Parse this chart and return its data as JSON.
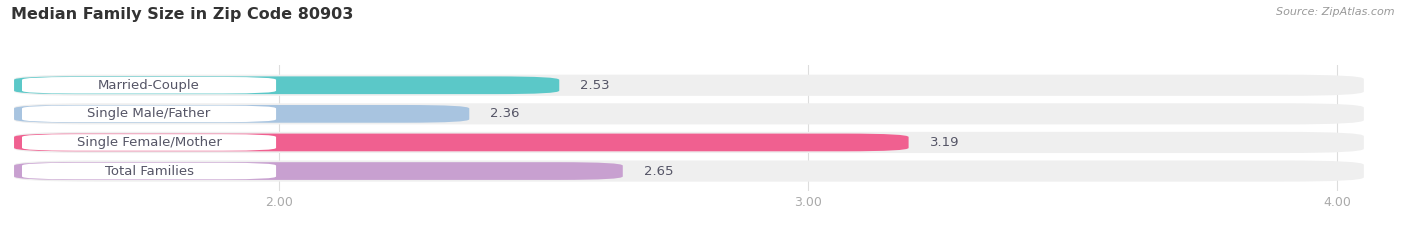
{
  "title": "Median Family Size in Zip Code 80903",
  "source": "Source: ZipAtlas.com",
  "categories": [
    "Married-Couple",
    "Single Male/Father",
    "Single Female/Mother",
    "Total Families"
  ],
  "values": [
    2.53,
    2.36,
    3.19,
    2.65
  ],
  "bar_colors": [
    "#5bc8c8",
    "#a8c4e0",
    "#f06090",
    "#c8a0d0"
  ],
  "bar_bg_color": "#efefef",
  "xlim_min": 1.5,
  "xlim_max": 4.05,
  "xticks": [
    2.0,
    3.0,
    4.0
  ],
  "xtick_labels": [
    "2.00",
    "3.00",
    "4.00"
  ],
  "bar_height": 0.62,
  "label_fontsize": 9.5,
  "value_fontsize": 9.5,
  "title_fontsize": 11.5,
  "background_color": "#ffffff",
  "text_color": "#555566",
  "title_color": "#333333",
  "source_color": "#999999",
  "tick_color": "#aaaaaa",
  "grid_color": "#dddddd",
  "pill_color": "#ffffff",
  "pill_label_color": "#555566"
}
